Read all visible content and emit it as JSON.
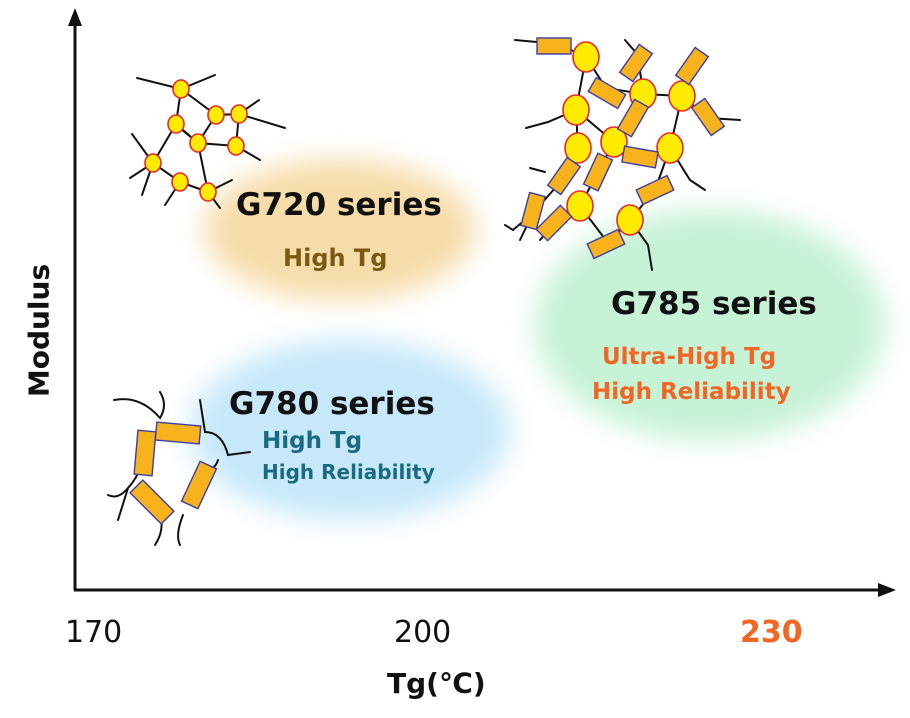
{
  "axes": {
    "x_label": "Tg(℃)",
    "y_label": "Modulus",
    "ticks": [
      {
        "label": "170",
        "color": "#111111"
      },
      {
        "label": "200",
        "color": "#111111"
      },
      {
        "label": "230",
        "color": "#f26522"
      }
    ]
  },
  "series": [
    {
      "id": "g720",
      "title": "G720 series",
      "lines": [
        "High Tg"
      ],
      "line_color": "#7a5a12",
      "blob_color": "#f6dca9"
    },
    {
      "id": "g780",
      "title": "G780 series",
      "lines": [
        "High Tg",
        "High Reliability"
      ],
      "line_color": "#1a6b82",
      "blob_color": "#c6e8f9"
    },
    {
      "id": "g785",
      "title": "G785 series",
      "lines": [
        "Ultra-High Tg",
        "High Reliability"
      ],
      "line_color": "#f26522",
      "blob_color": "#c6f2d6"
    }
  ],
  "colors": {
    "bead_fill": "#ffeb00",
    "bead_stroke": "#e8262a",
    "block_fill": "#f7b21c",
    "block_stroke": "#3a3ea8"
  }
}
